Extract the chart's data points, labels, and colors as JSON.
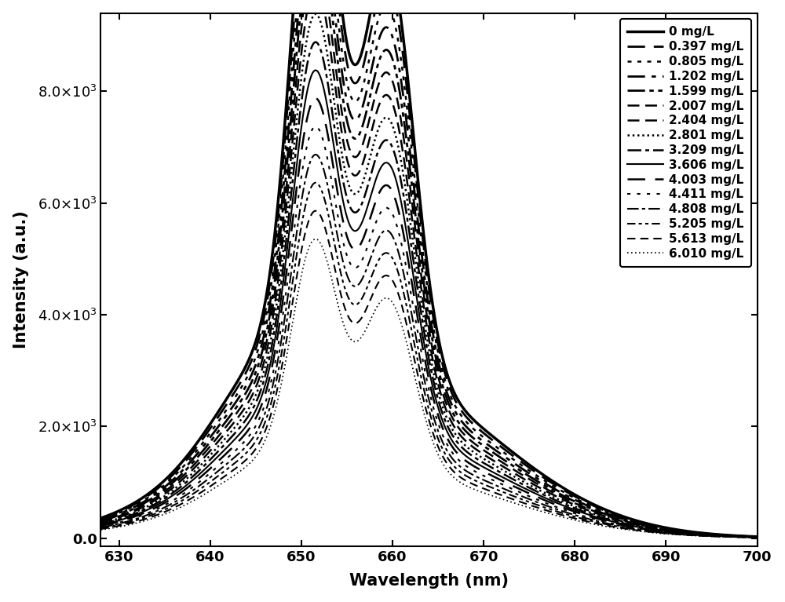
{
  "concentrations": [
    0,
    0.397,
    0.805,
    1.202,
    1.599,
    2.007,
    2.404,
    2.801,
    3.209,
    3.606,
    4.003,
    4.411,
    4.808,
    5.205,
    5.613,
    6.01
  ],
  "labels": [
    "0 mg/L",
    "0.397 mg/L",
    "0.805 mg/L",
    "1.202 mg/L",
    "1.599 mg/L",
    "2.007 mg/L",
    "2.404 mg/L",
    "2.801 mg/L",
    "3.209 mg/L",
    "3.606 mg/L",
    "4.003 mg/L",
    "4.411 mg/L",
    "4.808 mg/L",
    "5.205 mg/L",
    "5.613 mg/L",
    "6.010 mg/L"
  ],
  "peak1_wl": 651.5,
  "peak2_wl": 659.5,
  "xmin": 628,
  "xmax": 700,
  "ymin": -150,
  "ymax": 9400,
  "xlabel": "Wavelength (nm)",
  "ylabel": "Intensity (a.u.)",
  "yticks": [
    0,
    2000,
    4000,
    6000,
    8000
  ],
  "xticks": [
    630,
    640,
    650,
    660,
    670,
    680,
    690,
    700
  ],
  "line_color": "#000000",
  "bg_color": "#ffffff",
  "legend_fontsize": 11,
  "axis_fontsize": 15,
  "tick_fontsize": 13
}
